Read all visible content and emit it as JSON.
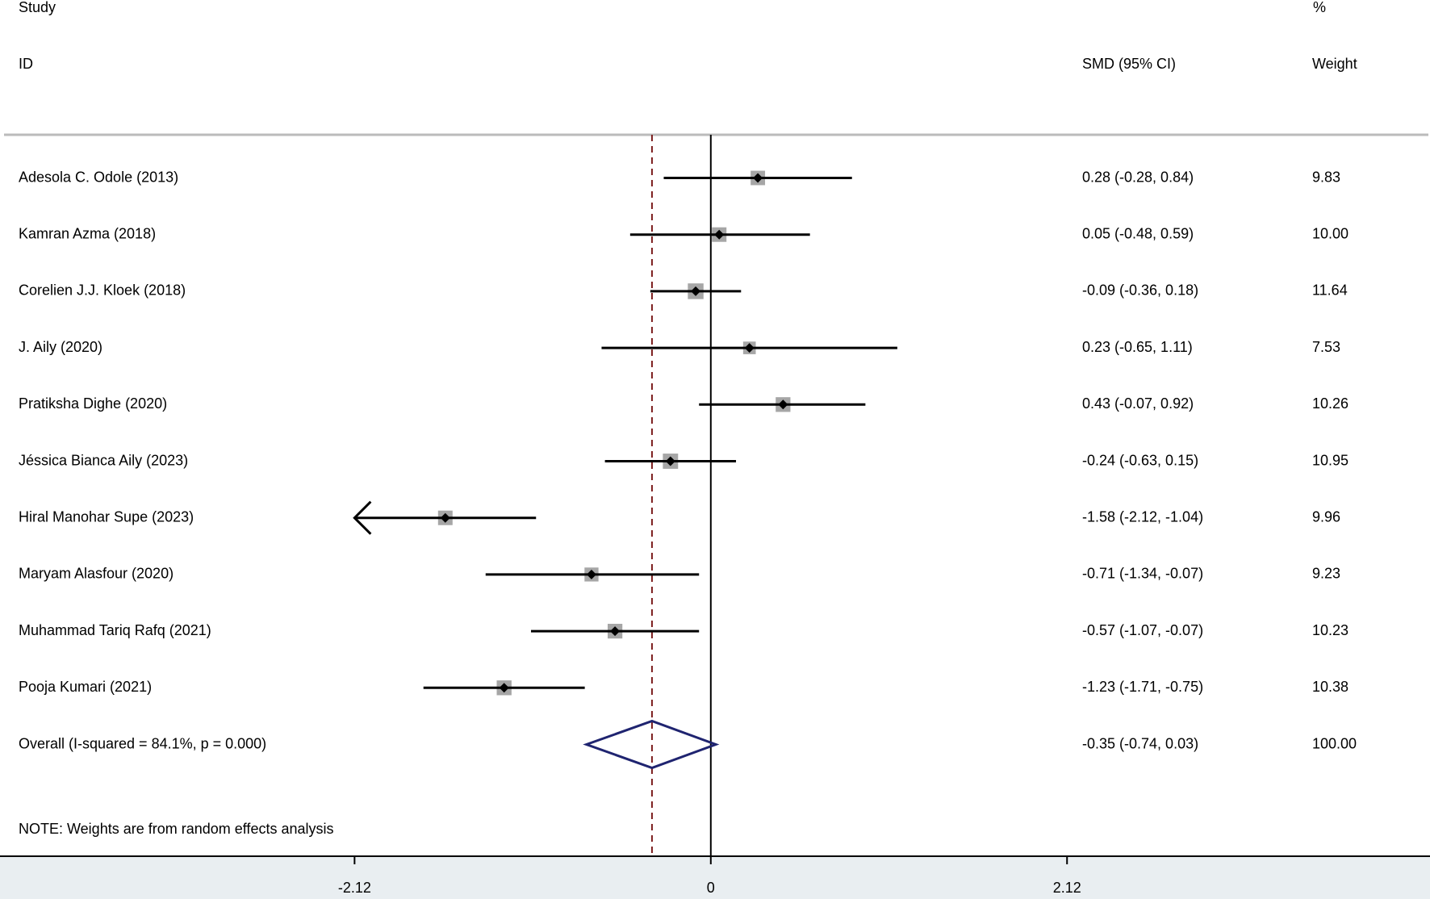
{
  "chart_data": {
    "type": "forest",
    "header": {
      "study": "Study",
      "id": "ID",
      "effect": "SMD (95% CI)",
      "percent": "%",
      "weight": "Weight"
    },
    "studies": [
      {
        "name": "Adesola C. Odole (2013)",
        "smd": 0.28,
        "lower": -0.28,
        "upper": 0.84,
        "ci_label": "0.28 (-0.28, 0.84)",
        "weight": 9.83,
        "weight_label": "9.83"
      },
      {
        "name": "Kamran Azma (2018)",
        "smd": 0.05,
        "lower": -0.48,
        "upper": 0.59,
        "ci_label": "0.05 (-0.48, 0.59)",
        "weight": 10,
        "weight_label": "10.00"
      },
      {
        "name": "Corelien J.J. Kloek (2018)",
        "smd": -0.09,
        "lower": -0.36,
        "upper": 0.18,
        "ci_label": "-0.09 (-0.36, 0.18)",
        "weight": 11.64,
        "weight_label": "11.64"
      },
      {
        "name": "J. Aily (2020)",
        "smd": 0.23,
        "lower": -0.65,
        "upper": 1.11,
        "ci_label": "0.23 (-0.65, 1.11)",
        "weight": 7.53,
        "weight_label": "7.53"
      },
      {
        "name": "Pratiksha Dighe (2020)",
        "smd": 0.43,
        "lower": -0.07,
        "upper": 0.92,
        "ci_label": "0.43 (-0.07, 0.92)",
        "weight": 10.26,
        "weight_label": "10.26"
      },
      {
        "name": "Jéssica Bianca Aily (2023)",
        "smd": -0.24,
        "lower": -0.63,
        "upper": 0.15,
        "ci_label": "-0.24 (-0.63, 0.15)",
        "weight": 10.95,
        "weight_label": "10.95"
      },
      {
        "name": "Hiral Manohar Supe (2023)",
        "smd": -1.58,
        "lower": -2.12,
        "upper": -1.04,
        "ci_label": "-1.58 (-2.12, -1.04)",
        "weight": 9.96,
        "weight_label": "9.96",
        "arrow": "left"
      },
      {
        "name": "Maryam Alasfour (2020)",
        "smd": -0.71,
        "lower": -1.34,
        "upper": -0.07,
        "ci_label": "-0.71 (-1.34, -0.07)",
        "weight": 9.23,
        "weight_label": "9.23"
      },
      {
        "name": "Muhammad Tariq Rafq (2021)",
        "smd": -0.57,
        "lower": -1.07,
        "upper": -0.07,
        "ci_label": "-0.57 (-1.07, -0.07)",
        "weight": 10.23,
        "weight_label": "10.23"
      },
      {
        "name": "Pooja Kumari (2021)",
        "smd": -1.23,
        "lower": -1.71,
        "upper": -0.75,
        "ci_label": "-1.23 (-1.71, -0.75)",
        "weight": 10.38,
        "weight_label": "10.38"
      }
    ],
    "overall": {
      "name": "Overall  (I-squared = 84.1%, p = 0.000)",
      "smd": -0.35,
      "lower": -0.74,
      "upper": 0.03,
      "ci_label": "-0.35 (-0.74, 0.03)",
      "weight": 100,
      "weight_label": "100.00"
    },
    "note": "NOTE: Weights are from random effects analysis",
    "xlim": [
      -4.23,
      4.28
    ],
    "xticks": [
      -2.12,
      0,
      2.12
    ],
    "square_color": "#a6a6a6",
    "diamond_color": "#1f2470",
    "reference_color": "#7b1c1c"
  }
}
